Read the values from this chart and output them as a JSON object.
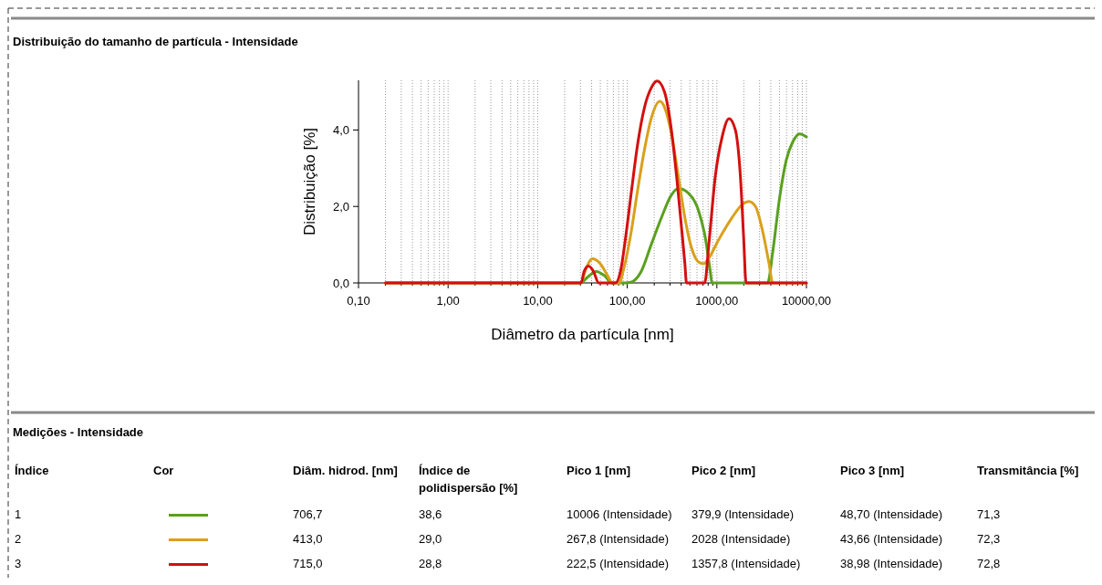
{
  "chart_data": {
    "type": "line",
    "title": "Distribuição do tamanho de partícula - Intensidade",
    "xlabel": "Diâmetro da partícula [nm]",
    "ylabel": "Distribuição [%]",
    "log": "x",
    "xlim": [
      0.1,
      10000
    ],
    "ylim": [
      0,
      5.3
    ],
    "xticks": [
      {
        "value": 0.1,
        "label": "0,10"
      },
      {
        "value": 0.2,
        "label": null
      },
      {
        "value": 0.3,
        "label": null
      },
      {
        "value": 0.4,
        "label": null
      },
      {
        "value": 0.5,
        "label": null
      },
      {
        "value": 0.6,
        "label": null
      },
      {
        "value": 0.7,
        "label": null
      },
      {
        "value": 0.8,
        "label": null
      },
      {
        "value": 0.9,
        "label": null
      },
      {
        "value": 1,
        "label": "1,00"
      },
      {
        "value": 2,
        "label": null
      },
      {
        "value": 3,
        "label": null
      },
      {
        "value": 4,
        "label": null
      },
      {
        "value": 5,
        "label": null
      },
      {
        "value": 6,
        "label": null
      },
      {
        "value": 7,
        "label": null
      },
      {
        "value": 8,
        "label": null
      },
      {
        "value": 9,
        "label": null
      },
      {
        "value": 10,
        "label": "10,00"
      },
      {
        "value": 20,
        "label": null
      },
      {
        "value": 30,
        "label": null
      },
      {
        "value": 40,
        "label": null
      },
      {
        "value": 50,
        "label": null
      },
      {
        "value": 60,
        "label": null
      },
      {
        "value": 70,
        "label": null
      },
      {
        "value": 80,
        "label": null
      },
      {
        "value": 90,
        "label": null
      },
      {
        "value": 100,
        "label": "100,00"
      },
      {
        "value": 200,
        "label": null
      },
      {
        "value": 300,
        "label": null
      },
      {
        "value": 400,
        "label": null
      },
      {
        "value": 500,
        "label": null
      },
      {
        "value": 600,
        "label": null
      },
      {
        "value": 700,
        "label": null
      },
      {
        "value": 800,
        "label": null
      },
      {
        "value": 900,
        "label": null
      },
      {
        "value": 1000,
        "label": "1000,00"
      },
      {
        "value": 2000,
        "label": null
      },
      {
        "value": 3000,
        "label": null
      },
      {
        "value": 4000,
        "label": null
      },
      {
        "value": 5000,
        "label": null
      },
      {
        "value": 6000,
        "label": null
      },
      {
        "value": 7000,
        "label": null
      },
      {
        "value": 8000,
        "label": null
      },
      {
        "value": 9000,
        "label": null
      },
      {
        "value": 10000,
        "label": "10000,00"
      }
    ],
    "yticks": [
      {
        "value": 0,
        "label": "0,0"
      },
      {
        "value": 2,
        "label": "2,0"
      },
      {
        "value": 4,
        "label": "4,0"
      }
    ],
    "grid": "x",
    "line_style": "solid",
    "series": [
      {
        "color": "#5aa01e",
        "x": [
          0.2,
          30,
          36,
          45,
          55,
          68,
          95,
          110,
          143,
          185,
          240,
          311,
          371,
          481,
          623,
          741,
          845,
          882,
          3690,
          4200,
          5000,
          5940,
          7070,
          8410,
          10000
        ],
        "values": [
          0,
          0,
          0.15,
          0.3,
          0.2,
          0,
          0,
          0.02,
          0.3,
          1.0,
          1.7,
          2.3,
          2.47,
          2.35,
          1.9,
          1.2,
          0.3,
          0,
          0,
          0.8,
          2.2,
          3.2,
          3.7,
          3.9,
          3.82
        ]
      },
      {
        "color": "#d9a01a",
        "x": [
          0.2,
          30,
          35,
          40.5,
          50,
          60,
          68,
          81,
          92,
          110,
          130,
          156,
          185,
          231,
          260,
          311,
          371,
          440,
          524,
          623,
          713,
          813,
          1030,
          1470,
          1920,
          2280,
          2700,
          3210,
          3830,
          4200,
          10000
        ],
        "values": [
          0,
          0,
          0.4,
          0.63,
          0.5,
          0.2,
          0,
          0,
          0.4,
          1.3,
          2.4,
          3.5,
          4.3,
          4.75,
          4.6,
          3.9,
          2.8,
          1.7,
          0.9,
          0.55,
          0.5,
          0.65,
          1.1,
          1.7,
          2.05,
          2.13,
          2.0,
          1.4,
          0.5,
          0,
          0
        ]
      },
      {
        "color": "#d40f0f",
        "x": [
          0.2,
          30.5,
          33,
          37,
          42,
          48,
          74,
          84,
          96,
          110,
          130,
          156,
          185,
          216,
          260,
          311,
          355,
          405,
          440,
          458,
          732,
          813,
          962,
          1140,
          1370,
          1610,
          1830,
          1990,
          2120,
          10000
        ],
        "values": [
          0,
          0,
          0.3,
          0.44,
          0.3,
          0,
          0,
          0.3,
          1.2,
          2.3,
          3.6,
          4.6,
          5.1,
          5.28,
          5.0,
          4.0,
          2.8,
          1.4,
          0.5,
          0,
          0,
          1.0,
          2.8,
          3.8,
          4.3,
          4.0,
          2.8,
          1.2,
          0,
          0
        ]
      }
    ],
    "annotations": [
      "Medições - Intensidade",
      "Índice",
      "Cor",
      "Diâm. hidrod. [nm]",
      "Índice de polidispersão [%]",
      "Pico 1 [nm]",
      "Pico 2 [nm]",
      "Pico 3 [nm]",
      "Transmitância [%]",
      "1",
      "706,7",
      "38,6",
      "10006 (Intensidade)",
      "379,9 (Intensidade)",
      "48,70 (Intensidade)",
      "71,3",
      "2",
      "413,0",
      "29,0",
      "267,8 (Intensidade)",
      "2028 (Intensidade)",
      "43,66 (Intensidade)",
      "72,3",
      "3",
      "715,0",
      "28,8",
      "222,5 (Intensidade)",
      "1357,8 (Intensidade)",
      "38,98 (Intensidade)",
      "72,8"
    ]
  }
}
